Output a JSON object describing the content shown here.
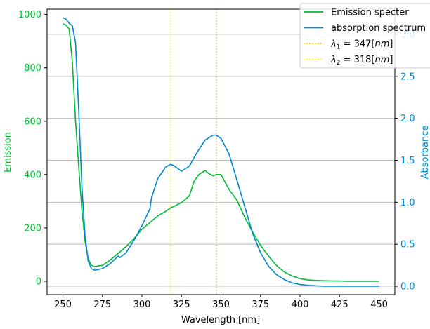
{
  "chart_data": {
    "type": "line",
    "xlabel": "Wavelength [nm]",
    "ylabel_left": "Emission",
    "ylabel_right": "Absorbance",
    "xlim": [
      240,
      460
    ],
    "ylim_left": [
      -50,
      1020
    ],
    "ylim_right": [
      -0.1,
      3.3
    ],
    "x_ticks": [
      250,
      275,
      300,
      325,
      350,
      375,
      400,
      425,
      450
    ],
    "left_ticks": [
      0,
      200,
      400,
      600,
      800,
      1000
    ],
    "right_ticks": [
      0.0,
      0.5,
      1.0,
      1.5,
      2.0,
      2.5,
      3.0
    ],
    "grid": "horizontal lines at right-axis ticks",
    "legend_position": "top-right",
    "colors": {
      "emission": "#00bb33",
      "absorption": "#0088cc",
      "lambda1": "#ffbb00",
      "lambda2": "#ffff00",
      "left_axis_text": "#00bb33",
      "right_axis_text": "#0088cc",
      "grid": "#bbbbbb"
    },
    "series": [
      {
        "name": "Emission specter",
        "axis": "left",
        "x": [
          250,
          252,
          254,
          256,
          258,
          260,
          262,
          264,
          266,
          268,
          270,
          275,
          280,
          285,
          290,
          295,
          300,
          305,
          310,
          315,
          318,
          320,
          325,
          330,
          333,
          336,
          340,
          342,
          345,
          347,
          350,
          355,
          360,
          365,
          370,
          375,
          380,
          385,
          390,
          395,
          400,
          405,
          410,
          415,
          420,
          425,
          430,
          440,
          450
        ],
        "y": [
          965,
          960,
          945,
          820,
          600,
          430,
          270,
          150,
          85,
          60,
          55,
          60,
          80,
          105,
          130,
          160,
          195,
          220,
          245,
          262,
          275,
          280,
          295,
          320,
          375,
          400,
          415,
          405,
          395,
          400,
          400,
          345,
          305,
          240,
          185,
          135,
          95,
          60,
          35,
          20,
          10,
          5,
          3,
          2,
          1,
          1,
          0,
          0,
          0
        ]
      },
      {
        "name": "absorption spectrum",
        "axis": "right",
        "x": [
          250,
          252,
          254,
          256,
          258,
          260,
          262,
          264,
          266,
          268,
          270,
          275,
          280,
          285,
          286,
          290,
          295,
          300,
          305,
          306,
          310,
          315,
          318,
          320,
          325,
          330,
          335,
          340,
          345,
          347,
          350,
          355,
          360,
          365,
          370,
          375,
          380,
          385,
          390,
          395,
          400,
          405,
          410,
          415,
          420,
          430,
          440,
          450
        ],
        "y": [
          3.2,
          3.18,
          3.13,
          3.1,
          2.9,
          2.1,
          1.2,
          0.6,
          0.3,
          0.21,
          0.19,
          0.21,
          0.27,
          0.36,
          0.34,
          0.4,
          0.55,
          0.72,
          0.92,
          1.05,
          1.28,
          1.42,
          1.45,
          1.44,
          1.37,
          1.43,
          1.6,
          1.74,
          1.8,
          1.8,
          1.76,
          1.58,
          1.27,
          0.95,
          0.63,
          0.4,
          0.24,
          0.14,
          0.08,
          0.04,
          0.02,
          0.01,
          0.005,
          0.0,
          0.0,
          0.0,
          0.0,
          0.0
        ]
      }
    ],
    "vlines": [
      {
        "name": "λ1 = 347[nm]",
        "x": 347,
        "sub": "1",
        "value": "347",
        "unit": "[nm]"
      },
      {
        "name": "λ2 = 318[nm]",
        "x": 318,
        "sub": "2",
        "value": "318",
        "unit": "[nm]"
      }
    ],
    "legend": [
      {
        "label": "Emission specter",
        "style": "solid",
        "color_key": "emission"
      },
      {
        "label": "absorption spectrum",
        "style": "solid",
        "color_key": "absorption"
      },
      {
        "label_sym": "λ",
        "sub": "1",
        "rest": " = 347[",
        "italic": "nm",
        "end": "]",
        "style": "dotted",
        "color_key": "lambda1"
      },
      {
        "label_sym": "λ",
        "sub": "2",
        "rest": " = 318[",
        "italic": "nm",
        "end": "]",
        "style": "dotted",
        "color_key": "lambda2"
      }
    ]
  }
}
